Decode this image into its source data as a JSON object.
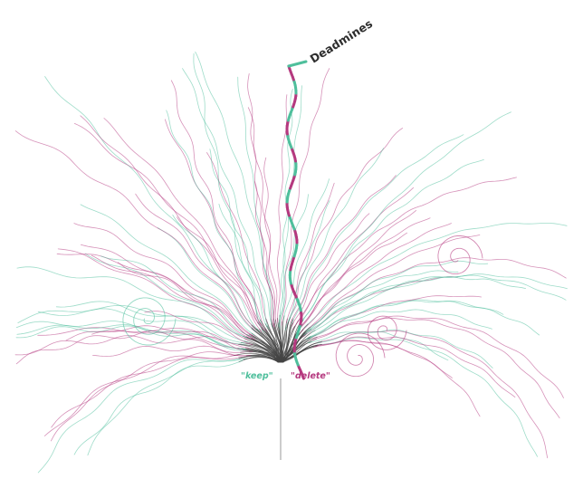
{
  "labels": {
    "highlight": "Deadmines",
    "left_branch": "\"keep\"",
    "right_branch": "\"delete\""
  },
  "colors": {
    "keep": "#4fbf9c",
    "delete": "#b5397f",
    "trunk": "#444444",
    "root": "#9a9a9a",
    "title": "#2e2e2e"
  }
}
